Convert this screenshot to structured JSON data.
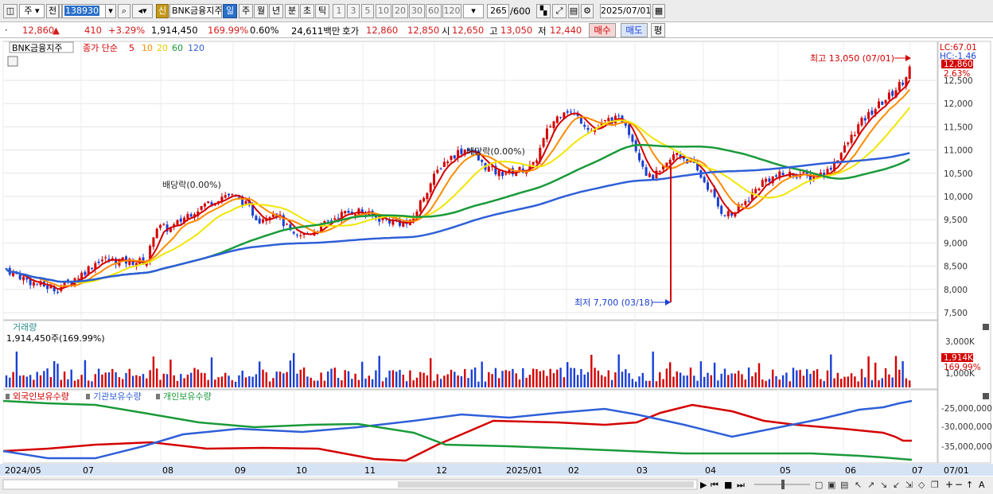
{
  "toolbar": {
    "market": "주",
    "prev": "전",
    "code": "138930",
    "stock_name": "BNK금융지주",
    "shin": "신",
    "periods": [
      "일",
      "주",
      "월",
      "년",
      "분",
      "초",
      "틱"
    ],
    "numbers": [
      "1",
      "3",
      "5",
      "10",
      "20",
      "30",
      "60",
      "120"
    ],
    "count": "265",
    "count_total": "/600",
    "date": "2025/07/01"
  },
  "quote": {
    "price": "12,860",
    "change_sign": "▲",
    "change": "410",
    "change_pct": "+3.29%",
    "volume": "1,914,450",
    "volume_pct": "169.99%",
    "turnover_pct": "0.60%",
    "amount": "24,611백만",
    "hoga_label": "호가",
    "ask": "12,860",
    "bid": "12,850",
    "open_label": "시",
    "open": "12,650",
    "high_label": "고",
    "high": "13,050",
    "low_label": "저",
    "low": "12,440",
    "buy": "매수",
    "sell": "매도",
    "eval": "평"
  },
  "price_panel": {
    "legend_name": "BNK금융지주",
    "legend_ma_title": "종가 단순",
    "ma_periods": [
      "5",
      "10",
      "20",
      "60",
      "120"
    ],
    "ma_colors": [
      "#d40000",
      "#ff8c00",
      "#f2e600",
      "#1a9a3a",
      "#2f5fd8"
    ],
    "lc": "LC:67.01",
    "hc": "HC:-1.46",
    "last_price": "12,860",
    "last_pct": "2.63%",
    "high_note": "최고 13,050 (07/01)",
    "low_note": "최저 7,700 (03/18)",
    "dividend1": "배당락(0.00%)",
    "dividend2": "배당락(0.00%)",
    "y_ticks": [
      "12,500",
      "12,000",
      "11,500",
      "11,000",
      "10,500",
      "10,000",
      "9,500",
      "9,000",
      "8,500",
      "8,000",
      "7,500"
    ]
  },
  "volume_panel": {
    "title": "거래량",
    "value": "1,914,450주(169.99%)",
    "y_ticks": [
      "3,000K",
      "1,000K"
    ],
    "last_value": "1,914K",
    "last_pct": "169.99%"
  },
  "holder_panel": {
    "series": [
      "외국인보유수량",
      "기관보유수량",
      "개인보유수량"
    ],
    "colors": [
      "#d40000",
      "#2f5fd8",
      "#1a9a3a"
    ],
    "y_ticks": [
      "-25,000,000",
      "-30,000,000",
      "-35,000,000"
    ]
  },
  "x_axis": {
    "labels": [
      "2024/05",
      "07",
      "08",
      "09",
      "10",
      "11",
      "12",
      "2025/01",
      "02",
      "03",
      "04",
      "05",
      "06",
      "07"
    ],
    "right_label": "07/01"
  },
  "chart_data": {
    "type": "candlestick",
    "title": "BNK금융지주",
    "x_range": [
      "2024/05",
      "2025/07/01"
    ],
    "ylim": [
      7500,
      13000
    ],
    "high": {
      "value": 13050,
      "date": "07/01"
    },
    "low": {
      "value": 7700,
      "date": "03/18"
    },
    "last_close": 12860,
    "moving_averages": [
      5,
      10,
      20,
      60,
      120
    ],
    "volume_last": 1914450,
    "holdings_series": [
      "외국인보유수량",
      "기관보유수량",
      "개인보유수량"
    ]
  }
}
